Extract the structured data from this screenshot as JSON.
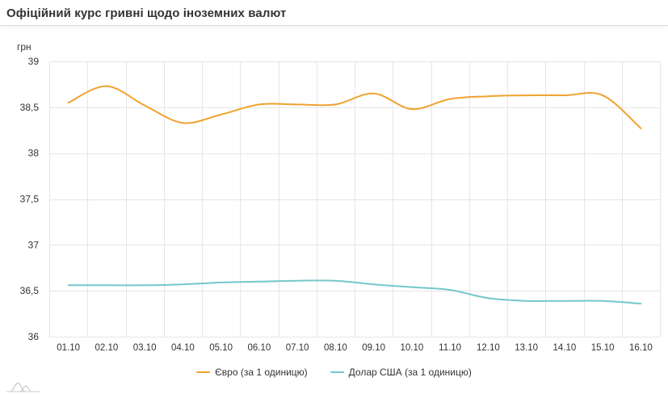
{
  "header": {
    "title": "Офіційний курс гривні щодо іноземних валют"
  },
  "chart_data": {
    "type": "line",
    "title": "Офіційний курс гривні щодо іноземних валют",
    "unit_label": "грн",
    "categories": [
      "01.10",
      "02.10",
      "03.10",
      "04.10",
      "05.10",
      "06.10",
      "07.10",
      "08.10",
      "09.10",
      "10.10",
      "11.10",
      "12.10",
      "13.10",
      "14.10",
      "15.10",
      "16.10"
    ],
    "series": [
      {
        "name": "Євро (за 1 одиницю)",
        "color": "#f0a22e",
        "values": [
          38.55,
          38.73,
          38.52,
          38.33,
          38.42,
          38.53,
          38.53,
          38.53,
          38.65,
          38.48,
          38.59,
          38.62,
          38.63,
          38.63,
          38.63,
          38.27
        ]
      },
      {
        "name": "Долар США (за 1 одиницю)",
        "color": "#74c7ca",
        "values": [
          36.56,
          36.56,
          36.56,
          36.57,
          36.59,
          36.6,
          36.61,
          36.61,
          36.57,
          36.54,
          36.51,
          36.42,
          36.39,
          36.39,
          36.39,
          36.36
        ]
      }
    ],
    "ylim": [
      36,
      39
    ],
    "yticks": [
      {
        "value": 39,
        "label": "39"
      },
      {
        "value": 38.5,
        "label": "38,5"
      },
      {
        "value": 38,
        "label": "38"
      },
      {
        "value": 37.5,
        "label": "37,5"
      },
      {
        "value": 37,
        "label": "37"
      },
      {
        "value": 36.5,
        "label": "36,5"
      },
      {
        "value": 36,
        "label": "36"
      }
    ],
    "grid": true,
    "legend_position": "bottom-center"
  },
  "colors": {
    "grid": "#e6e6e6",
    "axis_text": "#333333",
    "title_text": "#333333",
    "divider": "#dcdcdc",
    "watermark": "#cccccc",
    "background": "#ffffff"
  },
  "icons": {
    "watermark": "chart-hills-logo"
  }
}
